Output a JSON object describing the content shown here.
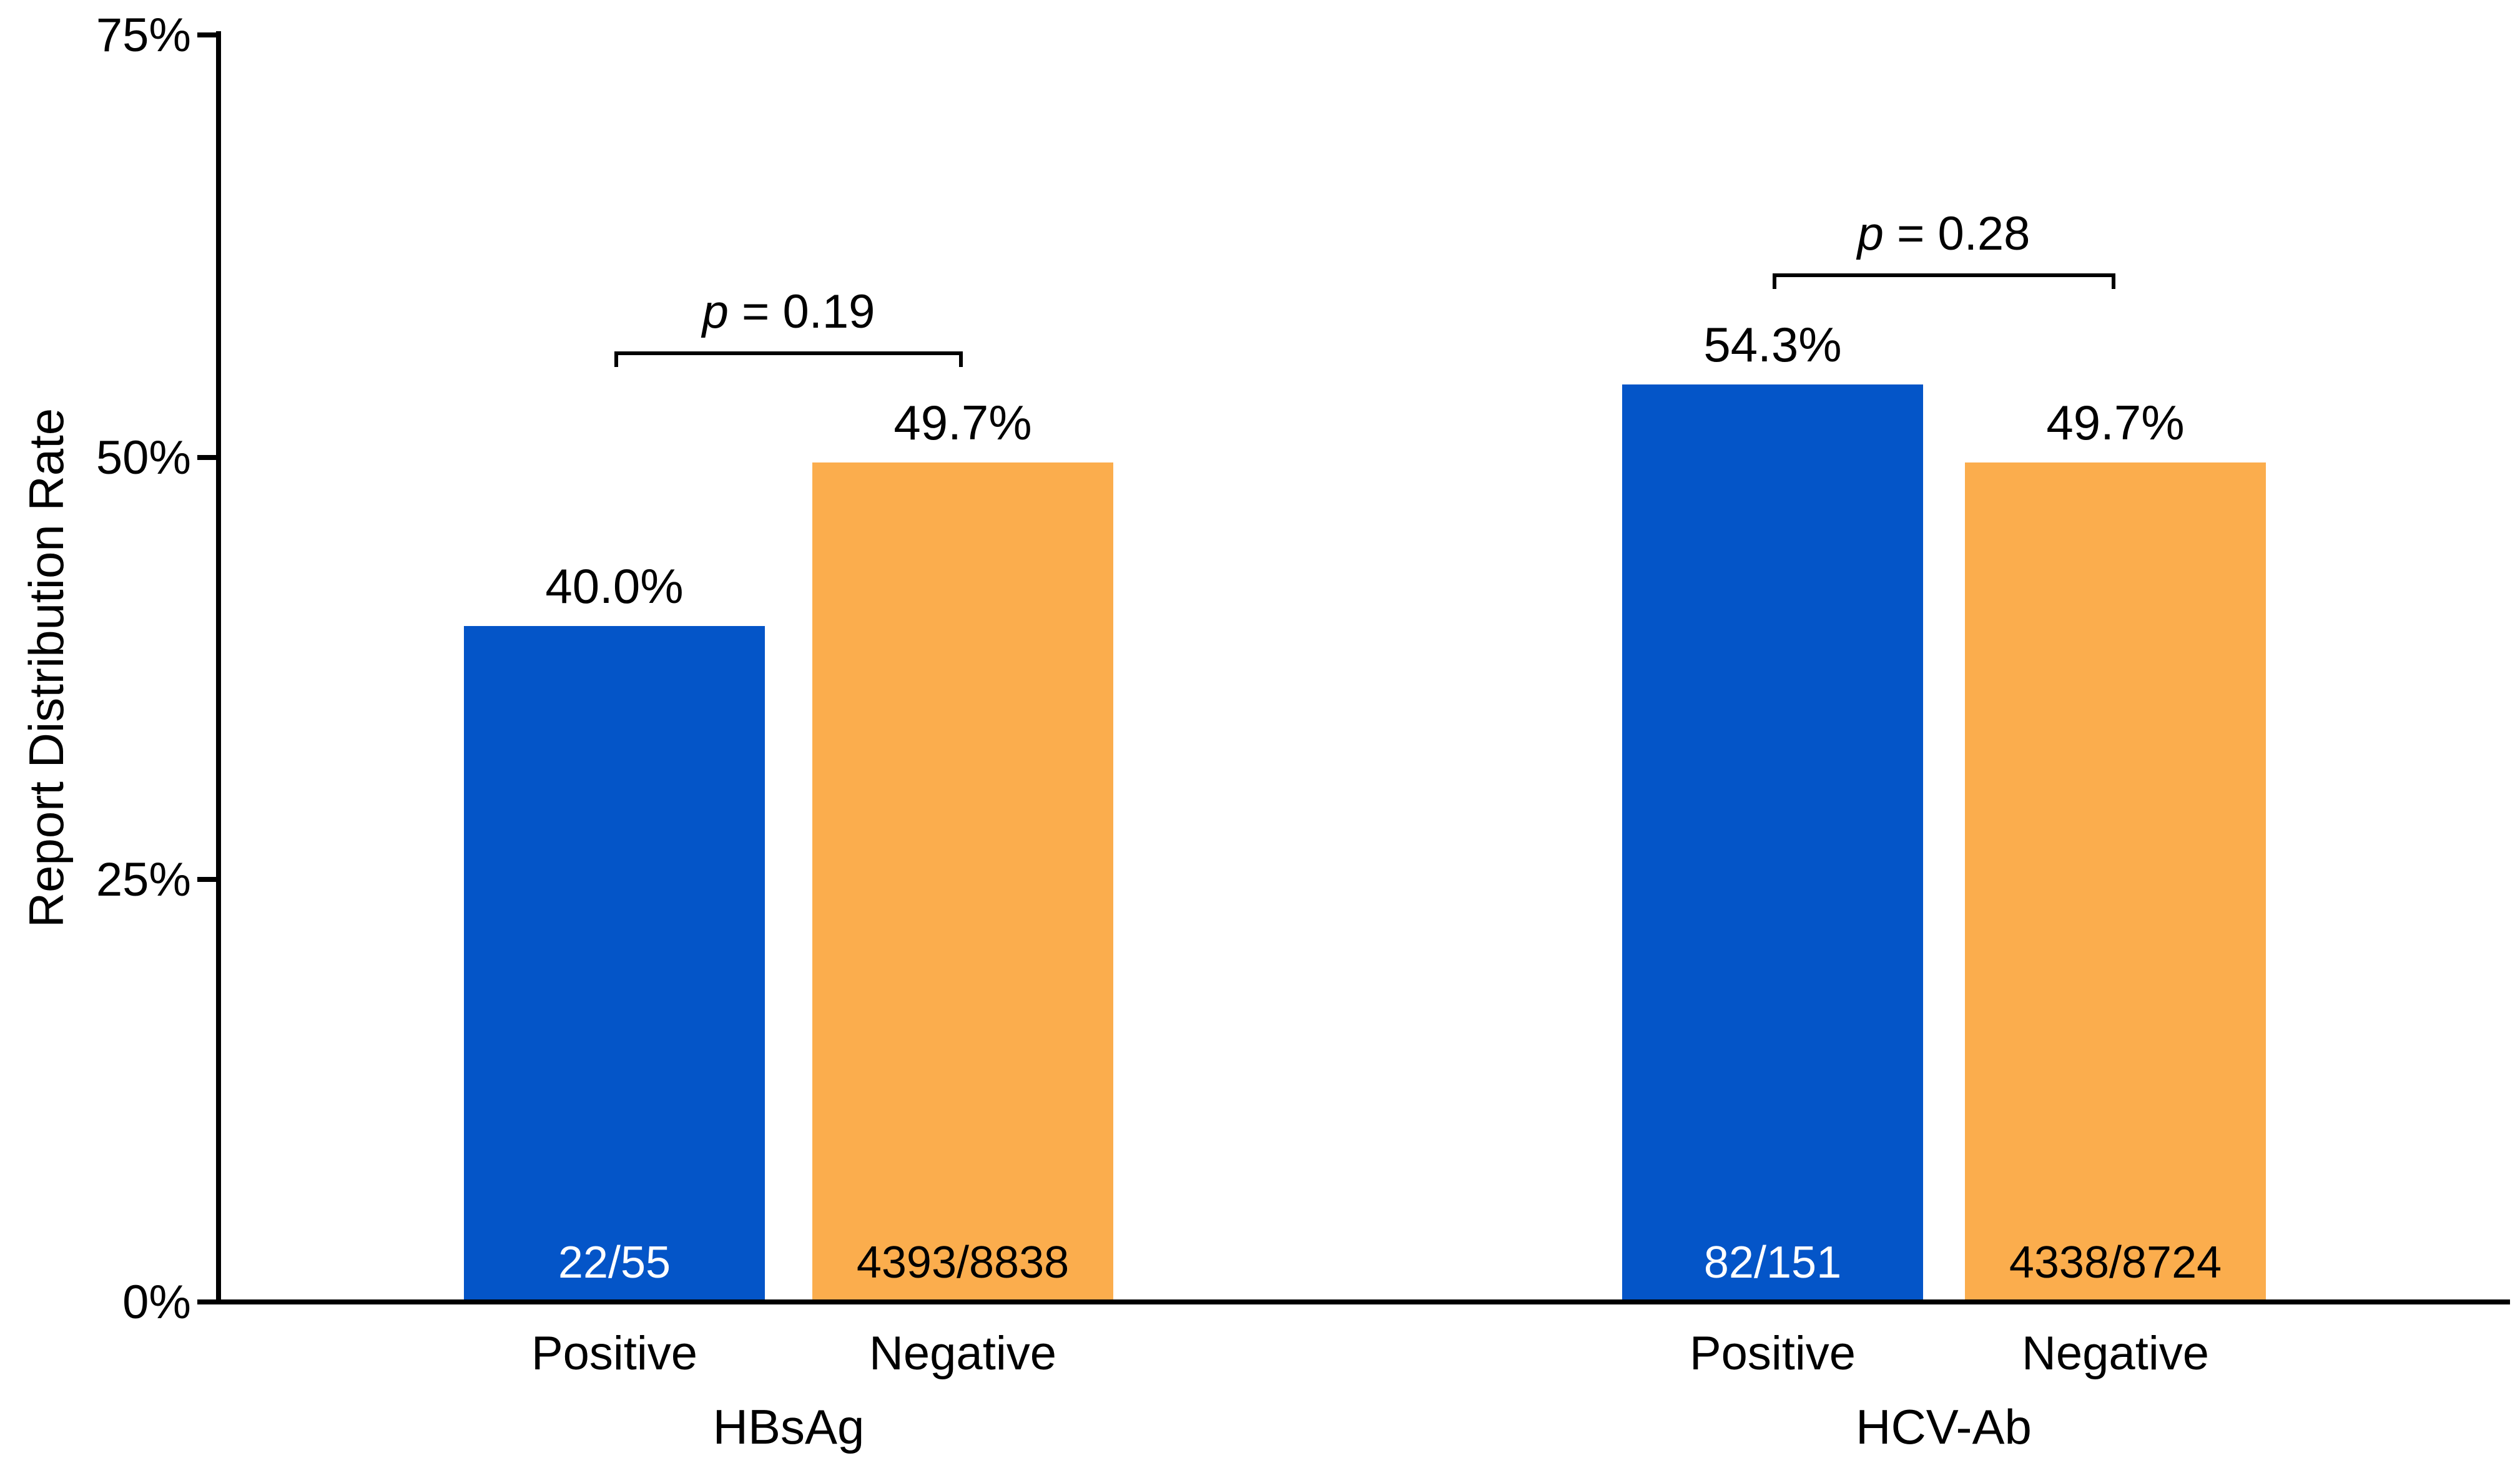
{
  "chart_data": {
    "type": "bar",
    "title": "",
    "xlabel": "",
    "ylabel": "Report Distribution Rate",
    "ylim": [
      0,
      75
    ],
    "y_ticks": [
      "0%",
      "25%",
      "50%",
      "75%"
    ],
    "y_tick_values": [
      0,
      25,
      50,
      75
    ],
    "grid": false,
    "legend": "none",
    "colors": {
      "positive_bar": "#0455C8",
      "negative_bar": "#FBAD4D",
      "axis": "#000000",
      "background": "#FFFFFF"
    },
    "groups": [
      {
        "label": "HBsAg",
        "p_prefix": "p",
        "p_rest": " = 0.19",
        "p_value": 0.19,
        "bars": [
          {
            "category": "Positive",
            "value_pct": 40.0,
            "value_label": "40.0%",
            "fraction": "22/55",
            "numerator": 22,
            "denominator": 55,
            "fill": "#0455C8",
            "fraction_color": "#FFFFFF"
          },
          {
            "category": "Negative",
            "value_pct": 49.7,
            "value_label": "49.7%",
            "fraction": "4393/8838",
            "numerator": 4393,
            "denominator": 8838,
            "fill": "#FBAD4D",
            "fraction_color": "#000000"
          }
        ]
      },
      {
        "label": "HCV-Ab",
        "p_prefix": "p",
        "p_rest": " = 0.28",
        "p_value": 0.28,
        "bars": [
          {
            "category": "Positive",
            "value_pct": 54.3,
            "value_label": "54.3%",
            "fraction": "82/151",
            "numerator": 82,
            "denominator": 151,
            "fill": "#0455C8",
            "fraction_color": "#FFFFFF"
          },
          {
            "category": "Negative",
            "value_pct": 49.7,
            "value_label": "49.7%",
            "fraction": "4338/8724",
            "numerator": 4338,
            "denominator": 8724,
            "fill": "#FBAD4D",
            "fraction_color": "#000000"
          }
        ]
      }
    ]
  }
}
